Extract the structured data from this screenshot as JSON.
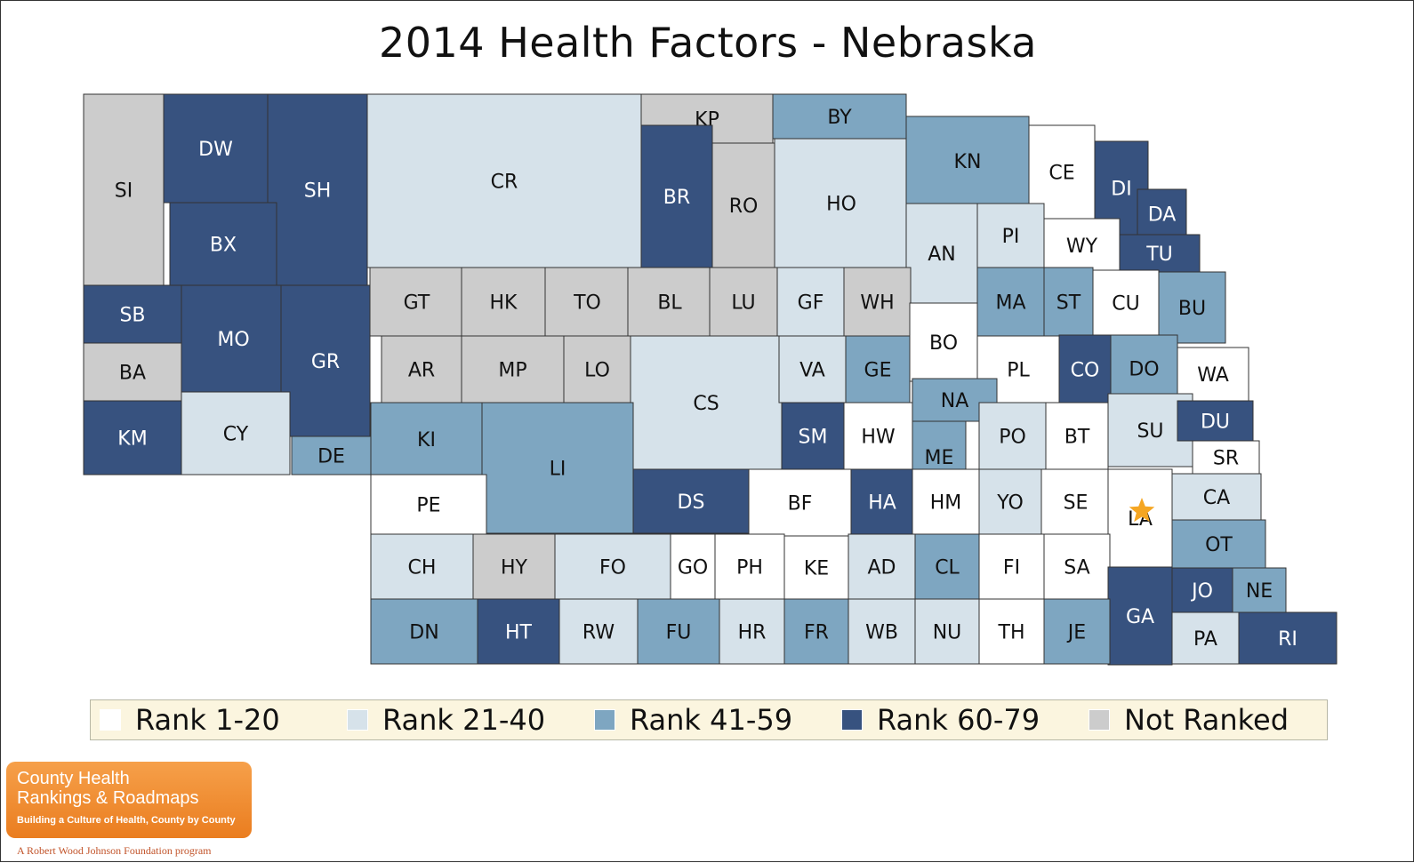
{
  "title": "2014 Health Factors - Nebraska",
  "colors": {
    "rank_1_20": "#ffffff",
    "rank_21_40": "#d6e2ea",
    "rank_41_59": "#7ea6c1",
    "rank_60_79": "#37527f",
    "not_ranked": "#cccccc",
    "border": "#333333",
    "star": "#f5a623"
  },
  "legend": [
    {
      "label": "Rank 1-20",
      "key": "rank_1_20"
    },
    {
      "label": "Rank 21-40",
      "key": "rank_21_40"
    },
    {
      "label": "Rank 41-59",
      "key": "rank_41_59"
    },
    {
      "label": "Rank 60-79",
      "key": "rank_60_79"
    },
    {
      "label": "Not Ranked",
      "key": "not_ranked"
    }
  ],
  "counties": [
    {
      "abbr": "SI",
      "category": "not_ranked"
    },
    {
      "abbr": "DW",
      "category": "rank_60_79"
    },
    {
      "abbr": "SH",
      "category": "rank_60_79"
    },
    {
      "abbr": "CR",
      "category": "rank_21_40"
    },
    {
      "abbr": "KP",
      "category": "not_ranked"
    },
    {
      "abbr": "BY",
      "category": "rank_41_59"
    },
    {
      "abbr": "BR",
      "category": "rank_60_79"
    },
    {
      "abbr": "RO",
      "category": "not_ranked"
    },
    {
      "abbr": "HO",
      "category": "rank_21_40"
    },
    {
      "abbr": "KN",
      "category": "rank_41_59"
    },
    {
      "abbr": "CE",
      "category": "rank_1_20"
    },
    {
      "abbr": "DI",
      "category": "rank_60_79"
    },
    {
      "abbr": "DA",
      "category": "rank_60_79"
    },
    {
      "abbr": "BX",
      "category": "rank_60_79"
    },
    {
      "abbr": "AN",
      "category": "rank_21_40"
    },
    {
      "abbr": "PI",
      "category": "rank_21_40"
    },
    {
      "abbr": "WY",
      "category": "rank_1_20"
    },
    {
      "abbr": "TU",
      "category": "rank_60_79"
    },
    {
      "abbr": "SB",
      "category": "rank_60_79"
    },
    {
      "abbr": "MO",
      "category": "rank_60_79"
    },
    {
      "abbr": "GR",
      "category": "rank_60_79"
    },
    {
      "abbr": "GT",
      "category": "not_ranked"
    },
    {
      "abbr": "HK",
      "category": "not_ranked"
    },
    {
      "abbr": "TO",
      "category": "not_ranked"
    },
    {
      "abbr": "BL",
      "category": "not_ranked"
    },
    {
      "abbr": "LU",
      "category": "not_ranked"
    },
    {
      "abbr": "GF",
      "category": "rank_21_40"
    },
    {
      "abbr": "WH",
      "category": "not_ranked"
    },
    {
      "abbr": "MA",
      "category": "rank_41_59"
    },
    {
      "abbr": "ST",
      "category": "rank_41_59"
    },
    {
      "abbr": "CU",
      "category": "rank_1_20"
    },
    {
      "abbr": "BU",
      "category": "rank_41_59"
    },
    {
      "abbr": "BA",
      "category": "not_ranked"
    },
    {
      "abbr": "AR",
      "category": "not_ranked"
    },
    {
      "abbr": "MP",
      "category": "not_ranked"
    },
    {
      "abbr": "LO",
      "category": "not_ranked"
    },
    {
      "abbr": "CS",
      "category": "rank_21_40"
    },
    {
      "abbr": "VA",
      "category": "rank_21_40"
    },
    {
      "abbr": "GE",
      "category": "rank_41_59"
    },
    {
      "abbr": "BO",
      "category": "rank_1_20"
    },
    {
      "abbr": "PL",
      "category": "rank_1_20"
    },
    {
      "abbr": "CO",
      "category": "rank_60_79"
    },
    {
      "abbr": "DO",
      "category": "rank_41_59"
    },
    {
      "abbr": "WA",
      "category": "rank_1_20"
    },
    {
      "abbr": "NA",
      "category": "rank_41_59"
    },
    {
      "abbr": "KM",
      "category": "rank_60_79"
    },
    {
      "abbr": "CY",
      "category": "rank_21_40"
    },
    {
      "abbr": "KI",
      "category": "rank_41_59"
    },
    {
      "abbr": "LI",
      "category": "rank_41_59"
    },
    {
      "abbr": "SM",
      "category": "rank_60_79"
    },
    {
      "abbr": "HW",
      "category": "rank_1_20"
    },
    {
      "abbr": "ME",
      "category": "rank_41_59"
    },
    {
      "abbr": "PO",
      "category": "rank_21_40"
    },
    {
      "abbr": "BT",
      "category": "rank_1_20"
    },
    {
      "abbr": "SU",
      "category": "rank_21_40"
    },
    {
      "abbr": "DU",
      "category": "rank_60_79"
    },
    {
      "abbr": "DE",
      "category": "rank_41_59"
    },
    {
      "abbr": "SR",
      "category": "rank_1_20"
    },
    {
      "abbr": "PE",
      "category": "rank_1_20"
    },
    {
      "abbr": "DS",
      "category": "rank_60_79"
    },
    {
      "abbr": "BF",
      "category": "rank_1_20"
    },
    {
      "abbr": "HA",
      "category": "rank_60_79"
    },
    {
      "abbr": "HM",
      "category": "rank_1_20"
    },
    {
      "abbr": "YO",
      "category": "rank_21_40"
    },
    {
      "abbr": "SE",
      "category": "rank_1_20"
    },
    {
      "abbr": "LA",
      "category": "rank_1_20"
    },
    {
      "abbr": "CA",
      "category": "rank_21_40"
    },
    {
      "abbr": "CH",
      "category": "rank_21_40"
    },
    {
      "abbr": "HY",
      "category": "not_ranked"
    },
    {
      "abbr": "FO",
      "category": "rank_21_40"
    },
    {
      "abbr": "GO",
      "category": "rank_1_20"
    },
    {
      "abbr": "PH",
      "category": "rank_1_20"
    },
    {
      "abbr": "KE",
      "category": "rank_1_20"
    },
    {
      "abbr": "AD",
      "category": "rank_21_40"
    },
    {
      "abbr": "CL",
      "category": "rank_41_59"
    },
    {
      "abbr": "FI",
      "category": "rank_1_20"
    },
    {
      "abbr": "SA",
      "category": "rank_1_20"
    },
    {
      "abbr": "OT",
      "category": "rank_41_59"
    },
    {
      "abbr": "JO",
      "category": "rank_60_79"
    },
    {
      "abbr": "NE",
      "category": "rank_41_59"
    },
    {
      "abbr": "GA",
      "category": "rank_60_79"
    },
    {
      "abbr": "DN",
      "category": "rank_41_59"
    },
    {
      "abbr": "HT",
      "category": "rank_60_79"
    },
    {
      "abbr": "RW",
      "category": "rank_21_40"
    },
    {
      "abbr": "FU",
      "category": "rank_41_59"
    },
    {
      "abbr": "HR",
      "category": "rank_21_40"
    },
    {
      "abbr": "FR",
      "category": "rank_41_59"
    },
    {
      "abbr": "WB",
      "category": "rank_21_40"
    },
    {
      "abbr": "NU",
      "category": "rank_21_40"
    },
    {
      "abbr": "TH",
      "category": "rank_1_20"
    },
    {
      "abbr": "JE",
      "category": "rank_41_59"
    },
    {
      "abbr": "PA",
      "category": "rank_21_40"
    },
    {
      "abbr": "RI",
      "category": "rank_60_79"
    }
  ],
  "capital_marker": "LA",
  "logo": {
    "line1": "County Health",
    "line2": "Rankings & Roadmaps",
    "tagline": "Building a Culture of Health, County by County",
    "foundation": "A Robert Wood Johnson Foundation program"
  }
}
